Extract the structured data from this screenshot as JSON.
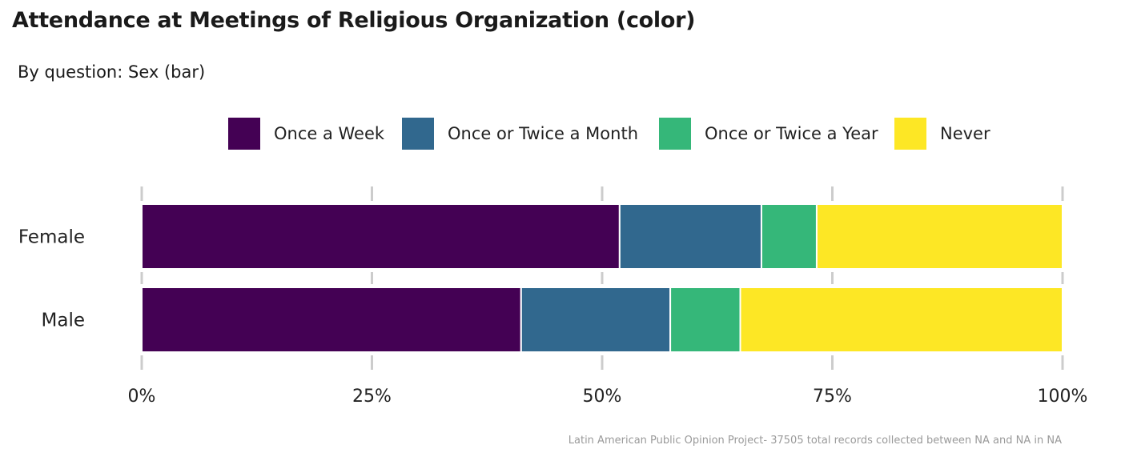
{
  "title": "Attendance at Meetings of Religious Organization (color)",
  "subtitle": "By question: Sex (bar)",
  "caption": "Latin American Public Opinion Project- 37505 total records collected between NA and NA in  NA",
  "chart_data": {
    "type": "bar",
    "orientation": "horizontal",
    "stacked": true,
    "title": "Attendance at Meetings of Religious Organization (color)",
    "subtitle": "By question: Sex (bar)",
    "xlabel": "",
    "ylabel": "",
    "xlim": [
      0,
      100
    ],
    "x_ticks": [
      "0%",
      "25%",
      "50%",
      "75%",
      "100%"
    ],
    "grid": "vertical major",
    "legend_position": "top",
    "categories": [
      "Female",
      "Male"
    ],
    "series": [
      {
        "name": "Once a Week",
        "color": "#440154",
        "values": [
          51.9,
          41.2
        ]
      },
      {
        "name": "Once or Twice a Month",
        "color": "#31688E",
        "values": [
          15.4,
          16.2
        ]
      },
      {
        "name": "Once or Twice a Year",
        "color": "#35B779",
        "values": [
          6.0,
          7.6
        ]
      },
      {
        "name": "Never",
        "color": "#FDE725",
        "values": [
          26.7,
          35.0
        ]
      }
    ]
  }
}
